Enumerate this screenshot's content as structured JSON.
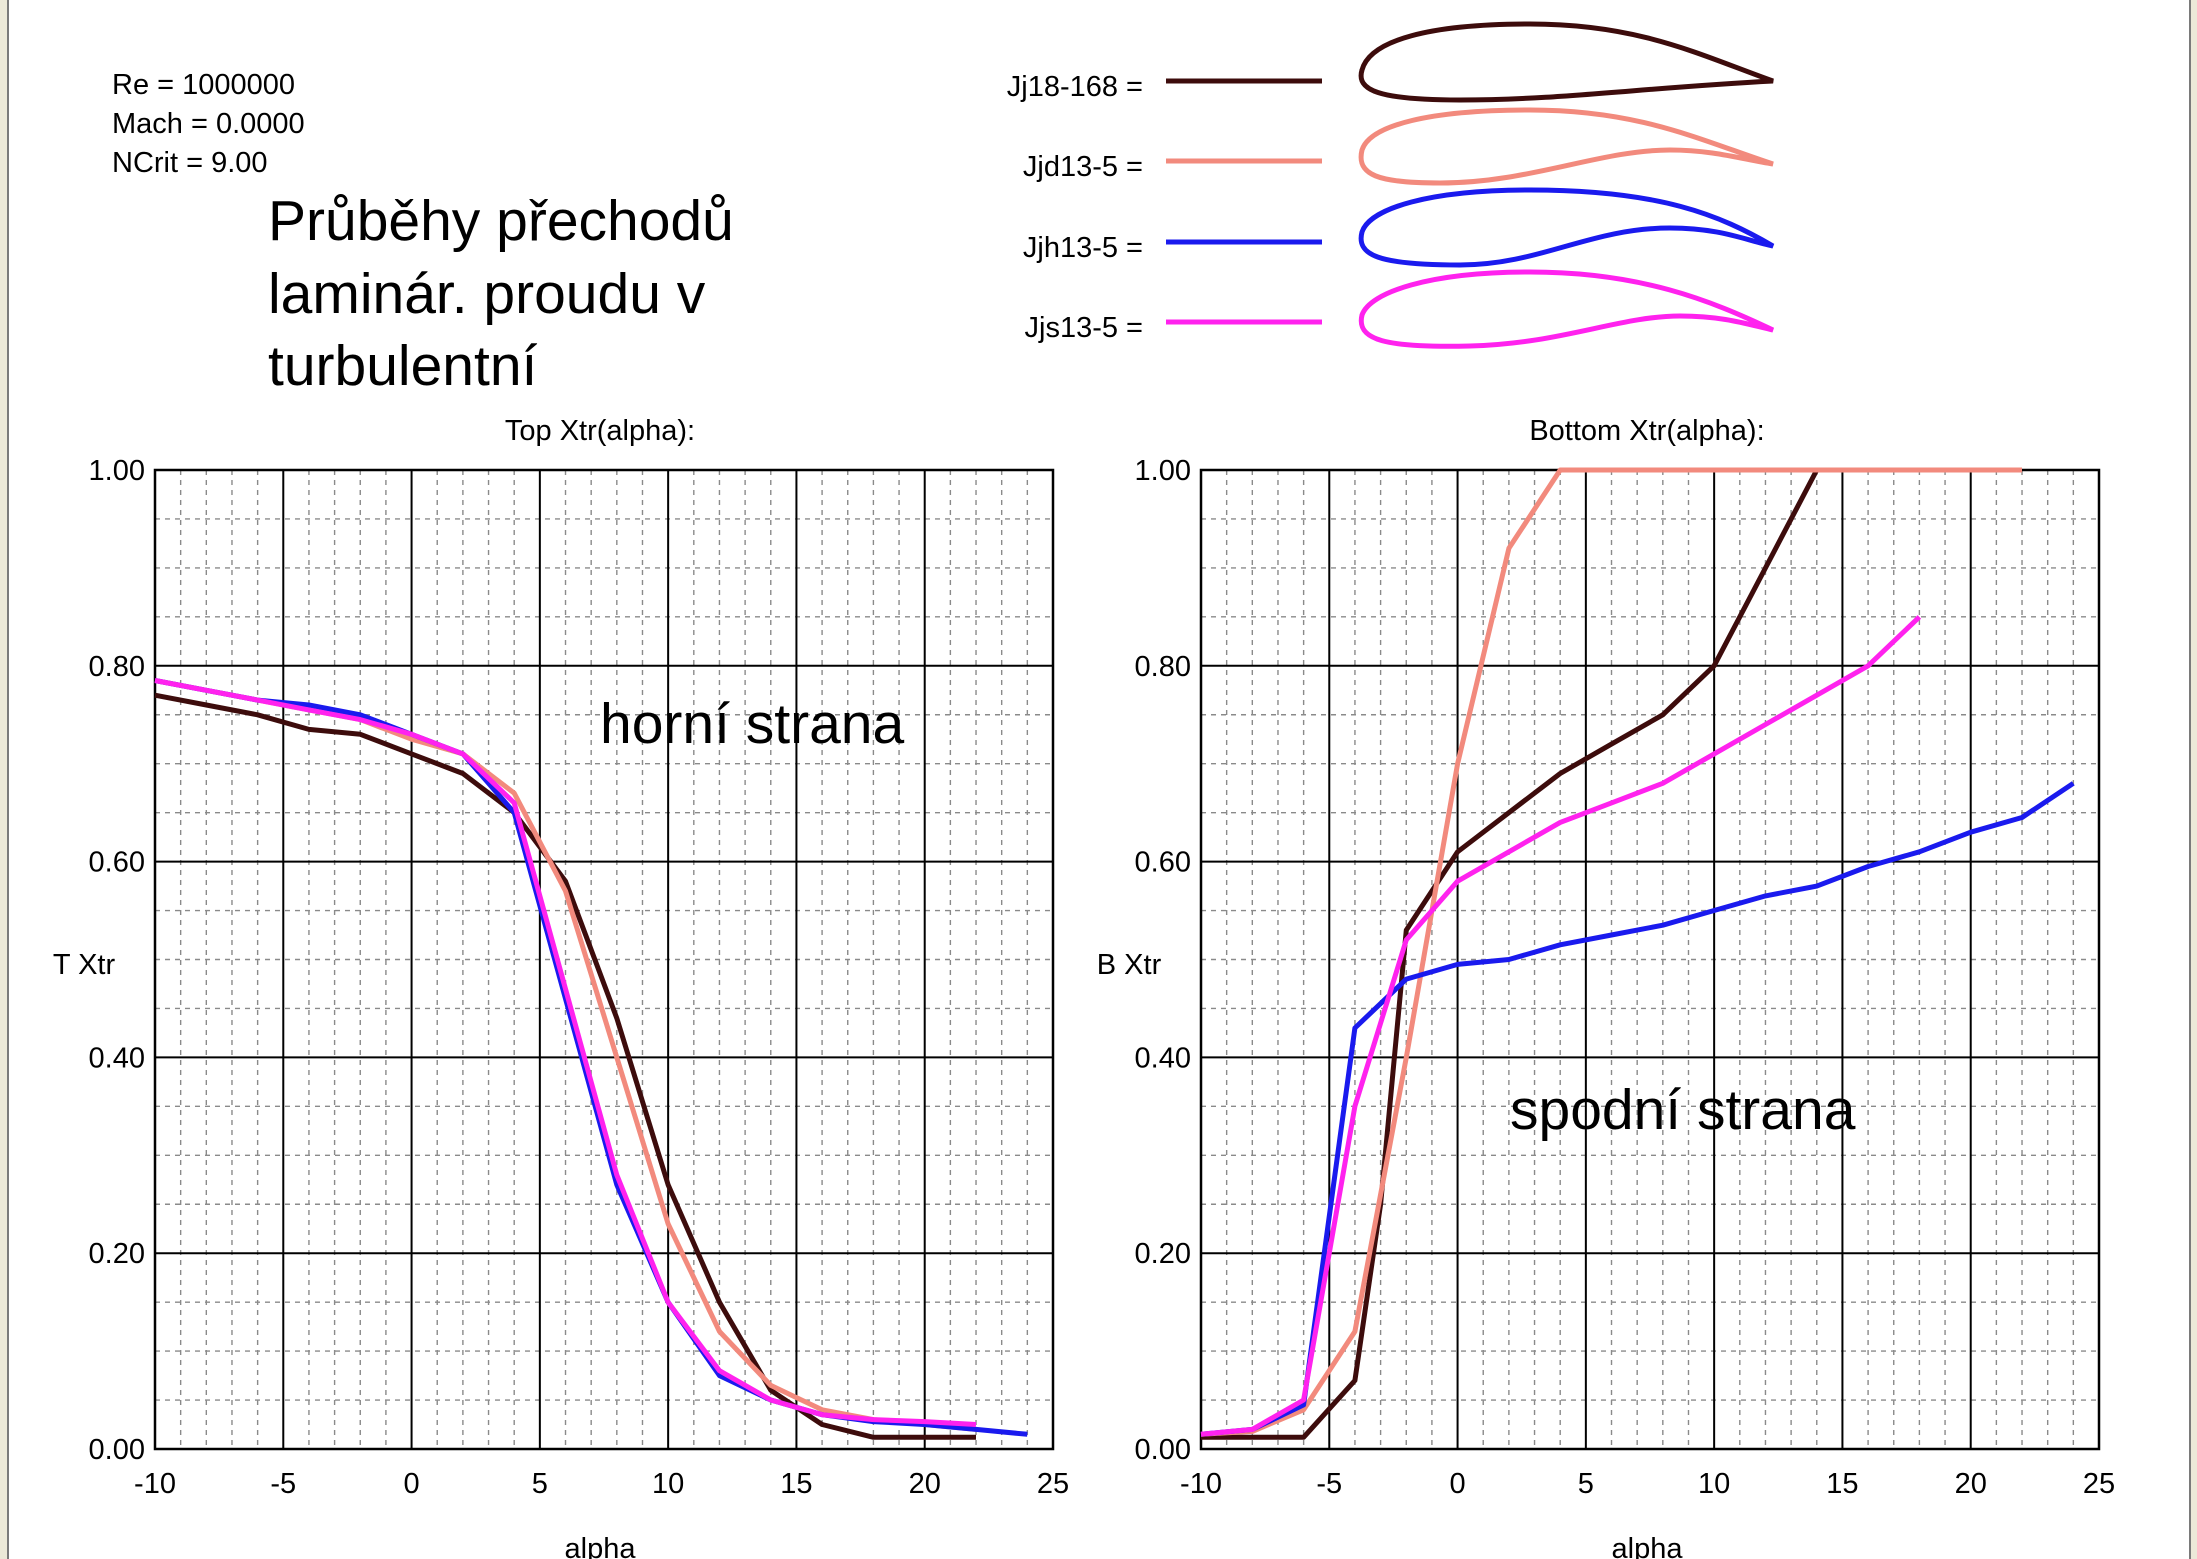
{
  "params": [
    "Re = 1000000",
    "Mach = 0.0000",
    "NCrit = 9.00"
  ],
  "heading": [
    "Průběhy přechodů",
    "laminár. proudu v",
    "turbulentní"
  ],
  "legend": [
    {
      "label": "Jj18-168 =",
      "color": "#3d0c0c"
    },
    {
      "label": "Jjd13-5 =",
      "color": "#f28a7d"
    },
    {
      "label": "Jjh13-5 =",
      "color": "#1a1aee"
    },
    {
      "label": "Jjs13-5 =",
      "color": "#ff22ee"
    }
  ],
  "chart_data": [
    {
      "type": "line",
      "title": "Top Xtr(alpha):",
      "xlabel": "alpha",
      "ylabel": "T Xtr",
      "xlim": [
        -10,
        25
      ],
      "ylim": [
        0,
        1
      ],
      "xticks": [
        "-10",
        "-5",
        "0",
        "5",
        "10",
        "15",
        "20",
        "25"
      ],
      "yticks": [
        "0.00",
        "0.20",
        "0.40",
        "0.60",
        "0.80",
        "1.00"
      ],
      "grid": true,
      "annotation": "horní strana",
      "series": [
        {
          "name": "Jj18-168",
          "color": "#3d0c0c",
          "x": [
            -10,
            -8,
            -6,
            -4,
            -2,
            0,
            2,
            4,
            6,
            8,
            10,
            12,
            14,
            16,
            18,
            20,
            22
          ],
          "y": [
            0.77,
            0.76,
            0.75,
            0.735,
            0.73,
            0.71,
            0.69,
            0.65,
            0.58,
            0.44,
            0.27,
            0.15,
            0.06,
            0.025,
            0.012,
            0.012,
            0.012
          ]
        },
        {
          "name": "Jjd13-5",
          "color": "#f28a7d",
          "x": [
            -10,
            -8,
            -6,
            -4,
            -2,
            0,
            2,
            4,
            6,
            8,
            10,
            12,
            14,
            16,
            18,
            20,
            22
          ],
          "y": [
            0.785,
            0.775,
            0.765,
            0.755,
            0.745,
            0.725,
            0.71,
            0.67,
            0.57,
            0.4,
            0.23,
            0.12,
            0.065,
            0.04,
            0.03,
            0.025,
            0.02
          ]
        },
        {
          "name": "Jjh13-5",
          "color": "#1a1aee",
          "x": [
            -10,
            -8,
            -6,
            -4,
            -2,
            0,
            2,
            4,
            6,
            8,
            10,
            12,
            14,
            16,
            18,
            20,
            22,
            24
          ],
          "y": [
            0.785,
            0.775,
            0.765,
            0.76,
            0.75,
            0.73,
            0.71,
            0.65,
            0.46,
            0.27,
            0.15,
            0.075,
            0.05,
            0.035,
            0.028,
            0.025,
            0.02,
            0.015
          ]
        },
        {
          "name": "Jjs13-5",
          "color": "#ff22ee",
          "x": [
            -10,
            -8,
            -6,
            -4,
            -2,
            0,
            2,
            4,
            6,
            8,
            10,
            12,
            14,
            16,
            18,
            20,
            22
          ],
          "y": [
            0.785,
            0.775,
            0.765,
            0.755,
            0.745,
            0.73,
            0.71,
            0.66,
            0.47,
            0.28,
            0.15,
            0.08,
            0.05,
            0.035,
            0.03,
            0.028,
            0.025
          ]
        }
      ]
    },
    {
      "type": "line",
      "title": "Bottom Xtr(alpha):",
      "xlabel": "alpha",
      "ylabel": "B Xtr",
      "xlim": [
        -10,
        25
      ],
      "ylim": [
        0,
        1
      ],
      "xticks": [
        "-10",
        "-5",
        "0",
        "5",
        "10",
        "15",
        "20",
        "25"
      ],
      "yticks": [
        "0.00",
        "0.20",
        "0.40",
        "0.60",
        "0.80",
        "1.00"
      ],
      "grid": true,
      "annotation": "spodní strana",
      "series": [
        {
          "name": "Jj18-168",
          "color": "#3d0c0c",
          "x": [
            -10,
            -8,
            -6,
            -4,
            -3,
            -2,
            0,
            2,
            4,
            6,
            8,
            10,
            12,
            14
          ],
          "y": [
            0.012,
            0.012,
            0.012,
            0.07,
            0.25,
            0.53,
            0.61,
            0.65,
            0.69,
            0.72,
            0.75,
            0.8,
            0.9,
            1.0
          ]
        },
        {
          "name": "Jjd13-5",
          "color": "#f28a7d",
          "x": [
            -10,
            -8,
            -6,
            -4,
            -2,
            0,
            2,
            4,
            6,
            8,
            10,
            12,
            14,
            16,
            18,
            20,
            22
          ],
          "y": [
            0.015,
            0.018,
            0.04,
            0.12,
            0.4,
            0.7,
            0.92,
            1.0,
            1.0,
            1.0,
            1.0,
            1.0,
            1.0,
            1.0,
            1.0,
            1.0,
            1.0
          ]
        },
        {
          "name": "Jjh13-5",
          "color": "#1a1aee",
          "x": [
            -10,
            -8,
            -6,
            -4,
            -2,
            0,
            2,
            4,
            6,
            8,
            10,
            12,
            14,
            16,
            18,
            20,
            22,
            24
          ],
          "y": [
            0.015,
            0.02,
            0.045,
            0.43,
            0.48,
            0.495,
            0.5,
            0.515,
            0.525,
            0.535,
            0.55,
            0.565,
            0.575,
            0.595,
            0.61,
            0.63,
            0.645,
            0.68
          ]
        },
        {
          "name": "Jjs13-5",
          "color": "#ff22ee",
          "x": [
            -10,
            -8,
            -6,
            -4,
            -2,
            0,
            2,
            4,
            6,
            8,
            10,
            12,
            14,
            16,
            18
          ],
          "y": [
            0.015,
            0.02,
            0.05,
            0.35,
            0.52,
            0.58,
            0.61,
            0.64,
            0.66,
            0.68,
            0.71,
            0.74,
            0.77,
            0.8,
            0.85
          ]
        }
      ]
    }
  ]
}
